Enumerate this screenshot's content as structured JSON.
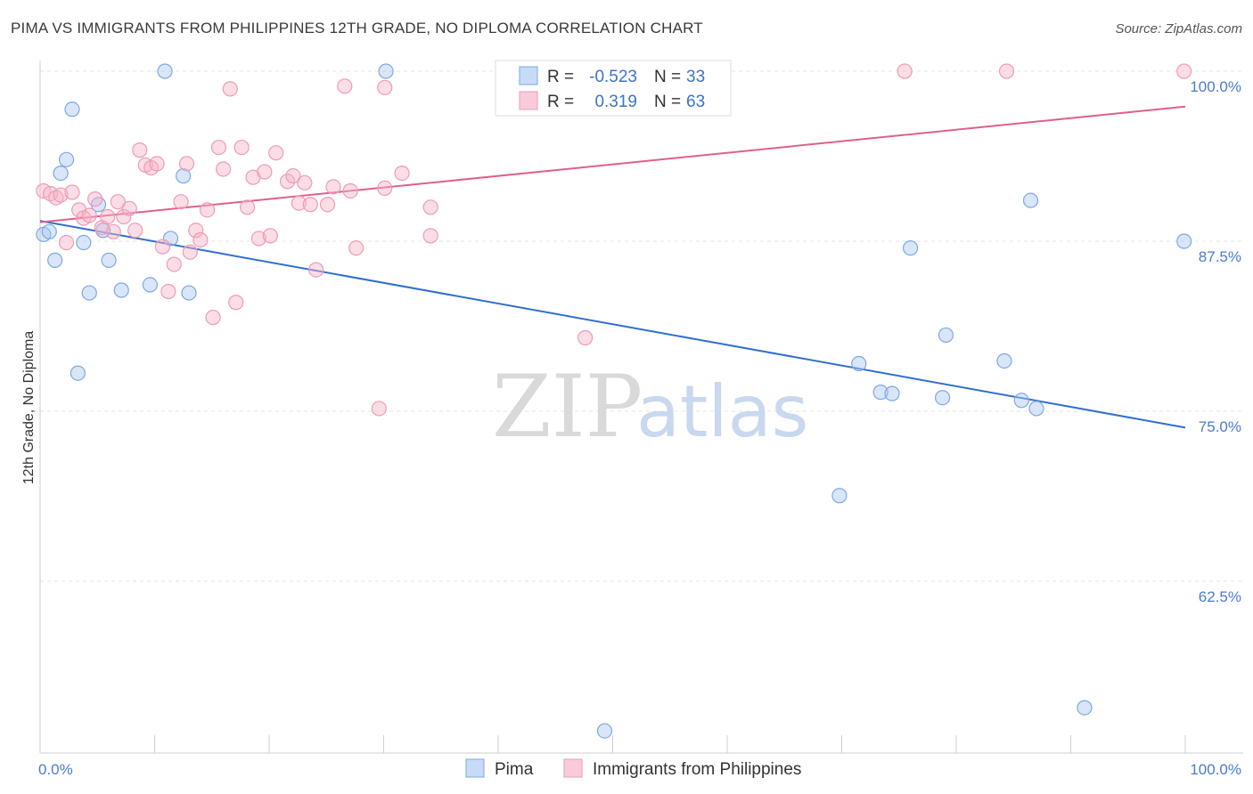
{
  "title": "PIMA VS IMMIGRANTS FROM PHILIPPINES 12TH GRADE, NO DIPLOMA CORRELATION CHART",
  "source": "Source: ZipAtlas.com",
  "watermark": {
    "left": "ZIP",
    "right": "atlas"
  },
  "colors": {
    "pima": "#6fa0e0",
    "pima_line": "#2f6fcf",
    "phil": "#f0a0b8",
    "phil_line": "#e0608a",
    "tick": "#4a7bd0"
  },
  "stats": [
    {
      "r_label": "R =",
      "r": "-0.523",
      "n_label": "N =",
      "n": "33"
    },
    {
      "r_label": "R =",
      "r": "0.319",
      "n_label": "N =",
      "n": "63"
    }
  ],
  "chart_data": {
    "type": "scatter",
    "xlabel": "",
    "ylabel": "12th Grade, No Diploma",
    "xlim": [
      0,
      100
    ],
    "ylim": [
      54,
      101
    ],
    "x_tick_labels": [
      "0.0%",
      "100.0%"
    ],
    "y_ticks": [
      62.5,
      75.0,
      87.5,
      100.0
    ],
    "y_tick_labels": [
      "62.5%",
      "75.0%",
      "87.5%",
      "100.0%"
    ],
    "grid": true,
    "legend": [
      "Pima",
      "Immigrants from Philippines"
    ],
    "legend_position": "bottom",
    "series": [
      {
        "name": "Pima",
        "trend": {
          "x": [
            0,
            100
          ],
          "y": [
            89.0,
            73.8
          ]
        },
        "points": [
          [
            0.3,
            88.0
          ],
          [
            0.8,
            88.2
          ],
          [
            1.3,
            86.1
          ],
          [
            1.8,
            92.5
          ],
          [
            2.3,
            93.5
          ],
          [
            2.8,
            97.2
          ],
          [
            3.3,
            77.8
          ],
          [
            3.8,
            87.4
          ],
          [
            4.3,
            83.7
          ],
          [
            5.1,
            90.2
          ],
          [
            5.5,
            88.3
          ],
          [
            6.0,
            86.1
          ],
          [
            7.1,
            83.9
          ],
          [
            9.6,
            84.3
          ],
          [
            10.9,
            100.0
          ],
          [
            11.4,
            87.7
          ],
          [
            12.5,
            92.3
          ],
          [
            13.0,
            83.7
          ],
          [
            30.2,
            100.0
          ],
          [
            49.3,
            51.5
          ],
          [
            69.8,
            68.8
          ],
          [
            71.5,
            78.5
          ],
          [
            73.4,
            76.4
          ],
          [
            74.4,
            76.3
          ],
          [
            76.0,
            87.0
          ],
          [
            78.8,
            76.0
          ],
          [
            79.1,
            80.6
          ],
          [
            84.2,
            78.7
          ],
          [
            85.7,
            75.8
          ],
          [
            86.5,
            90.5
          ],
          [
            87.0,
            75.2
          ],
          [
            91.2,
            53.2
          ],
          [
            99.9,
            87.5
          ]
        ]
      },
      {
        "name": "Immigrants from Philippines",
        "trend": {
          "x": [
            0,
            100
          ],
          "y": [
            88.9,
            97.4
          ]
        },
        "points": [
          [
            0.3,
            91.2
          ],
          [
            0.9,
            91.0
          ],
          [
            1.4,
            90.7
          ],
          [
            1.8,
            90.9
          ],
          [
            2.3,
            87.4
          ],
          [
            2.8,
            91.1
          ],
          [
            3.4,
            89.8
          ],
          [
            3.8,
            89.2
          ],
          [
            4.3,
            89.4
          ],
          [
            4.8,
            90.6
          ],
          [
            5.4,
            88.5
          ],
          [
            5.9,
            89.3
          ],
          [
            6.4,
            88.2
          ],
          [
            6.8,
            90.4
          ],
          [
            7.3,
            89.3
          ],
          [
            7.8,
            89.9
          ],
          [
            8.3,
            88.3
          ],
          [
            8.7,
            94.2
          ],
          [
            9.2,
            93.1
          ],
          [
            9.7,
            92.9
          ],
          [
            10.2,
            93.2
          ],
          [
            10.7,
            87.1
          ],
          [
            11.2,
            83.8
          ],
          [
            11.7,
            85.8
          ],
          [
            12.3,
            90.4
          ],
          [
            12.8,
            93.2
          ],
          [
            13.1,
            86.7
          ],
          [
            13.6,
            88.3
          ],
          [
            14.0,
            87.6
          ],
          [
            14.6,
            89.8
          ],
          [
            15.1,
            81.9
          ],
          [
            15.6,
            94.4
          ],
          [
            16.0,
            92.8
          ],
          [
            16.6,
            98.7
          ],
          [
            17.1,
            83.0
          ],
          [
            17.6,
            94.4
          ],
          [
            18.1,
            90.0
          ],
          [
            18.6,
            92.2
          ],
          [
            19.1,
            87.7
          ],
          [
            19.6,
            92.6
          ],
          [
            20.1,
            87.9
          ],
          [
            20.6,
            94.0
          ],
          [
            21.6,
            91.9
          ],
          [
            22.1,
            92.3
          ],
          [
            22.6,
            90.3
          ],
          [
            23.1,
            91.8
          ],
          [
            23.6,
            90.2
          ],
          [
            24.1,
            85.4
          ],
          [
            25.1,
            90.2
          ],
          [
            25.6,
            91.5
          ],
          [
            26.6,
            98.9
          ],
          [
            27.1,
            91.2
          ],
          [
            27.6,
            87.0
          ],
          [
            29.6,
            75.2
          ],
          [
            30.1,
            98.8
          ],
          [
            30.1,
            91.4
          ],
          [
            31.6,
            92.5
          ],
          [
            34.1,
            90.0
          ],
          [
            34.1,
            87.9
          ],
          [
            47.6,
            80.4
          ],
          [
            75.5,
            100.0
          ],
          [
            84.4,
            100.0
          ],
          [
            99.9,
            100.0
          ]
        ]
      }
    ]
  }
}
